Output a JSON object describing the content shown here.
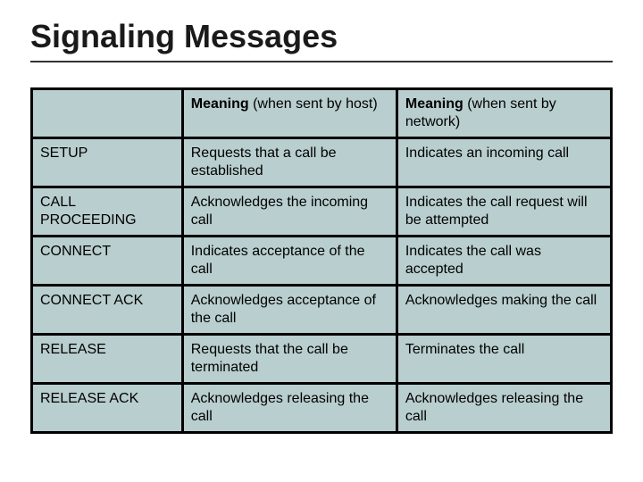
{
  "title": "Signaling Messages",
  "title_color": "#1a1a1a",
  "title_fontsize": 36,
  "underline_color": "#333333",
  "table": {
    "header_bg": "#b9cece",
    "body_bg": "#b9cece",
    "border_color": "#000000",
    "border_width": 3,
    "cell_fontsize": 16,
    "column_widths_pct": [
      26,
      37,
      37
    ],
    "columns": [
      "",
      "Meaning (when sent by host)",
      "Meaning (when sent by network)"
    ],
    "rows": [
      [
        "SETUP",
        "Requests that a call be established",
        "Indicates an incoming call"
      ],
      [
        "CALL PROCEEDING",
        "Acknowledges the incoming call",
        "Indicates the call request will be attempted"
      ],
      [
        "CONNECT",
        "Indicates acceptance of the call",
        "Indicates the call was accepted"
      ],
      [
        "CONNECT ACK",
        "Acknowledges acceptance of the call",
        "Acknowledges making the call"
      ],
      [
        "RELEASE",
        "Requests that the call be terminated",
        "Terminates the call"
      ],
      [
        "RELEASE ACK",
        "Acknowledges releasing the call",
        "Acknowledges releasing the call"
      ]
    ]
  }
}
